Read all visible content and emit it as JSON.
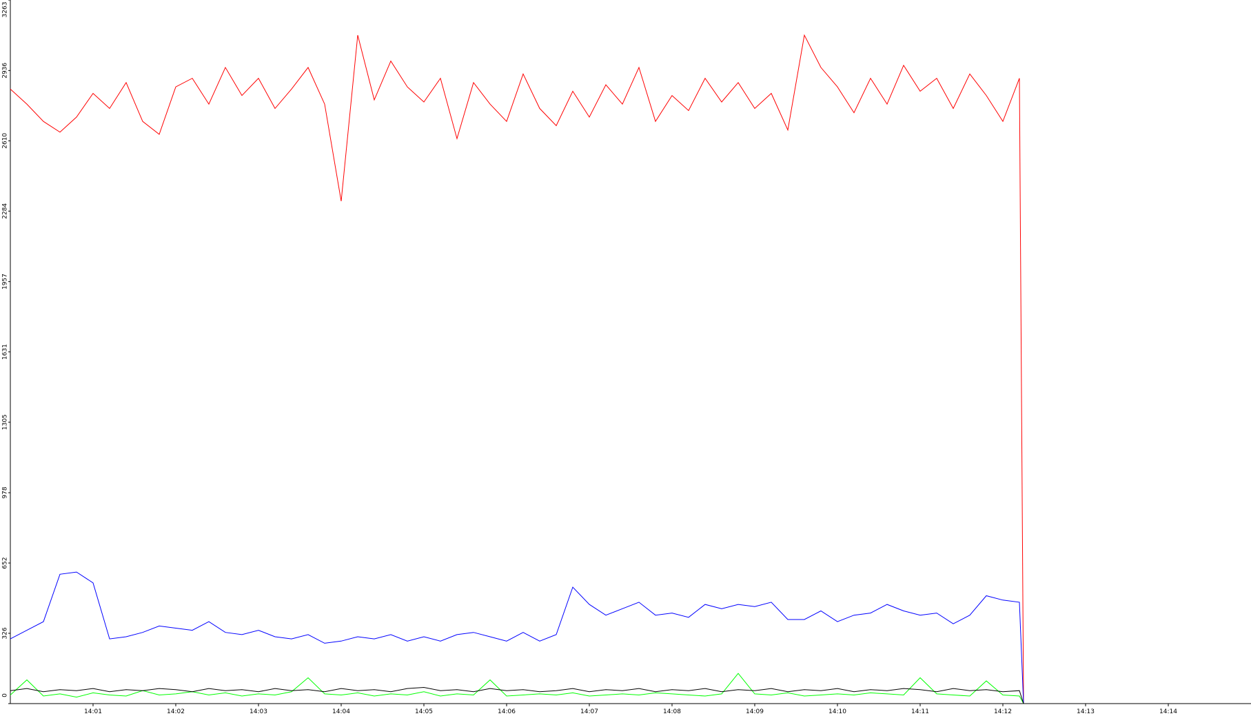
{
  "chart_data": {
    "type": "line",
    "xlim": [
      0,
      15
    ],
    "xticks": [
      {
        "value": 1,
        "label": "14:01"
      },
      {
        "value": 2,
        "label": "14:02"
      },
      {
        "value": 3,
        "label": "14:03"
      },
      {
        "value": 4,
        "label": "14:04"
      },
      {
        "value": 5,
        "label": "14:05"
      },
      {
        "value": 6,
        "label": "14:06"
      },
      {
        "value": 7,
        "label": "14:07"
      },
      {
        "value": 8,
        "label": "14:08"
      },
      {
        "value": 9,
        "label": "14:09"
      },
      {
        "value": 10,
        "label": "14:10"
      },
      {
        "value": 11,
        "label": "14:11"
      },
      {
        "value": 12,
        "label": "14:12"
      },
      {
        "value": 13,
        "label": "14:13"
      },
      {
        "value": 14,
        "label": "14:14"
      }
    ],
    "ylim": [
      0,
      3263
    ],
    "yticks": [
      0,
      326,
      652,
      978,
      1305,
      1631,
      1957,
      2284,
      2610,
      2936,
      3263
    ],
    "x": [
      0,
      0.2,
      0.4,
      0.6,
      0.8,
      1.0,
      1.2,
      1.4,
      1.6,
      1.8,
      2.0,
      2.2,
      2.4,
      2.6,
      2.8,
      3.0,
      3.2,
      3.4,
      3.6,
      3.8,
      4.0,
      4.2,
      4.4,
      4.6,
      4.8,
      5.0,
      5.2,
      5.4,
      5.6,
      5.8,
      6.0,
      6.2,
      6.4,
      6.6,
      6.8,
      7.0,
      7.2,
      7.4,
      7.6,
      7.8,
      8.0,
      8.2,
      8.4,
      8.6,
      8.8,
      9.0,
      9.2,
      9.4,
      9.6,
      9.8,
      10.0,
      10.2,
      10.4,
      10.6,
      10.8,
      11.0,
      11.2,
      11.4,
      11.6,
      11.8,
      12.0,
      12.2,
      12.25
    ],
    "series": [
      {
        "color": "#ff0000",
        "values": [
          2850,
          2780,
          2700,
          2650,
          2720,
          2830,
          2760,
          2880,
          2700,
          2640,
          2860,
          2900,
          2780,
          2950,
          2820,
          2900,
          2760,
          2850,
          2950,
          2780,
          2330,
          3100,
          2800,
          2980,
          2860,
          2790,
          2900,
          2620,
          2880,
          2780,
          2700,
          2920,
          2760,
          2680,
          2840,
          2720,
          2870,
          2780,
          2950,
          2700,
          2820,
          2750,
          2900,
          2790,
          2880,
          2760,
          2830,
          2660,
          3100,
          2950,
          2860,
          2740,
          2900,
          2780,
          2960,
          2840,
          2900,
          2760,
          2920,
          2820,
          2700,
          2900,
          0
        ]
      },
      {
        "color": "#0000ff",
        "values": [
          300,
          340,
          380,
          600,
          610,
          560,
          300,
          310,
          330,
          360,
          350,
          340,
          380,
          330,
          320,
          340,
          310,
          300,
          320,
          280,
          290,
          310,
          300,
          320,
          290,
          310,
          290,
          320,
          330,
          310,
          290,
          330,
          290,
          320,
          540,
          460,
          410,
          440,
          470,
          410,
          420,
          400,
          460,
          440,
          460,
          450,
          470,
          390,
          390,
          430,
          380,
          410,
          420,
          460,
          430,
          410,
          420,
          370,
          410,
          500,
          480,
          470,
          0
        ]
      },
      {
        "color": "#00ff00",
        "values": [
          40,
          110,
          35,
          45,
          30,
          50,
          40,
          35,
          60,
          40,
          45,
          55,
          40,
          50,
          35,
          45,
          40,
          55,
          120,
          45,
          40,
          50,
          35,
          45,
          40,
          55,
          35,
          45,
          40,
          110,
          35,
          40,
          45,
          40,
          50,
          35,
          40,
          45,
          40,
          50,
          45,
          40,
          35,
          45,
          140,
          45,
          40,
          50,
          35,
          40,
          45,
          40,
          50,
          45,
          40,
          120,
          45,
          40,
          35,
          105,
          40,
          35,
          0
        ]
      },
      {
        "color": "#000000",
        "values": [
          60,
          70,
          55,
          65,
          60,
          70,
          55,
          65,
          60,
          70,
          65,
          55,
          70,
          60,
          65,
          55,
          70,
          60,
          65,
          55,
          70,
          60,
          65,
          55,
          70,
          75,
          60,
          65,
          55,
          70,
          60,
          65,
          55,
          60,
          70,
          55,
          65,
          60,
          70,
          55,
          65,
          60,
          70,
          55,
          65,
          60,
          70,
          55,
          65,
          60,
          70,
          55,
          65,
          60,
          70,
          65,
          55,
          70,
          60,
          65,
          55,
          60,
          0
        ]
      }
    ]
  }
}
